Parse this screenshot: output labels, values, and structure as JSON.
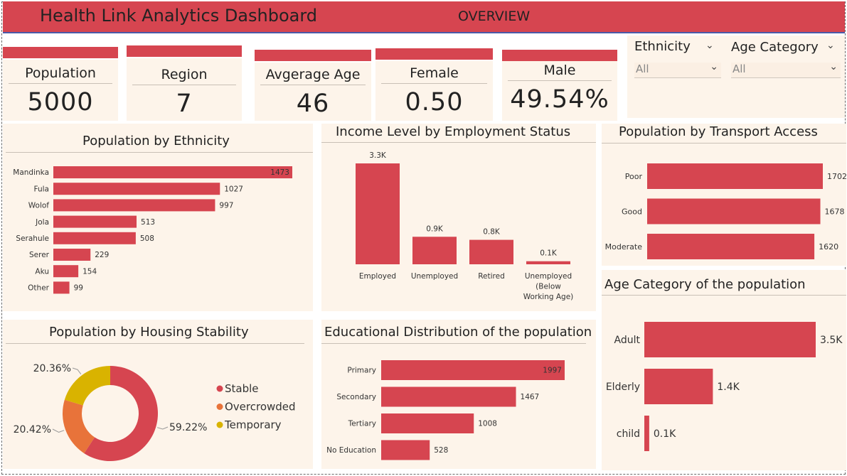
{
  "header": {
    "title": "Health Link Analytics Dashboard",
    "page": "OVERVIEW"
  },
  "kpis": [
    {
      "label": "Population",
      "value": "5000"
    },
    {
      "label": "Region",
      "value": "7"
    },
    {
      "label": "Avgerage Age",
      "value": "46"
    },
    {
      "label": "Female",
      "value": "0.50"
    },
    {
      "label": "Male",
      "value": "49.54%"
    }
  ],
  "slicers": [
    {
      "label": "Ethnicity",
      "value": "All",
      "icon": "chevron-down-icon"
    },
    {
      "label": "Age Category",
      "value": "All",
      "icon": "chevron-down-icon"
    }
  ],
  "colors": {
    "accent": "#d64550",
    "overcrowded": "#e8733a",
    "temporary": "#d9b300",
    "panel": "#fdf4ea"
  },
  "chart_data": [
    {
      "id": "ethnicity",
      "type": "bar",
      "orientation": "horizontal",
      "title": "Population by Ethnicity",
      "categories": [
        "Mandinka",
        "Fula",
        "Wolof",
        "Jola",
        "Serahule",
        "Serer",
        "Aku",
        "Other"
      ],
      "values": [
        1473,
        1027,
        997,
        513,
        508,
        229,
        154,
        99
      ],
      "labels": [
        "1473",
        "1027",
        "997",
        "513",
        "508",
        "229",
        "154",
        "99"
      ]
    },
    {
      "id": "income",
      "type": "bar",
      "orientation": "vertical",
      "title": "Income Level by Employment Status",
      "categories": [
        [
          "Employed"
        ],
        [
          "Unemployed"
        ],
        [
          "Retired"
        ],
        [
          "Unemployed",
          "(Below",
          "Working Age)"
        ]
      ],
      "values": [
        3.3,
        0.9,
        0.8,
        0.1
      ],
      "labels": [
        "3.3K",
        "0.9K",
        "0.8K",
        "0.1K"
      ]
    },
    {
      "id": "transport",
      "type": "bar",
      "orientation": "horizontal",
      "title": "Population by Transport Access",
      "categories": [
        "Poor",
        "Good",
        "Moderate"
      ],
      "values": [
        1702,
        1678,
        1620
      ],
      "labels": [
        "1702",
        "1678",
        "1620"
      ]
    },
    {
      "id": "housing",
      "type": "pie",
      "donut": true,
      "title": "Population by Housing Stability",
      "categories": [
        "Stable",
        "Overcrowded",
        "Temporary"
      ],
      "values": [
        59.22,
        20.42,
        20.36
      ],
      "labels": [
        "59.22%",
        "20.42%",
        "20.36%"
      ],
      "legend": "right"
    },
    {
      "id": "education",
      "type": "bar",
      "orientation": "horizontal",
      "title": "Educational Distribution of the population",
      "categories": [
        "Primary",
        "Secondary",
        "Tertiary",
        "No Education"
      ],
      "values": [
        1997,
        1467,
        1008,
        528
      ],
      "labels": [
        "1997",
        "1467",
        "1008",
        "528"
      ]
    },
    {
      "id": "age",
      "type": "bar",
      "orientation": "horizontal",
      "title": "Age Category of the population",
      "categories": [
        "Adult",
        "Elderly",
        "child"
      ],
      "values": [
        3.5,
        1.4,
        0.1
      ],
      "labels": [
        "3.5K",
        "1.4K",
        "0.1K"
      ]
    }
  ]
}
